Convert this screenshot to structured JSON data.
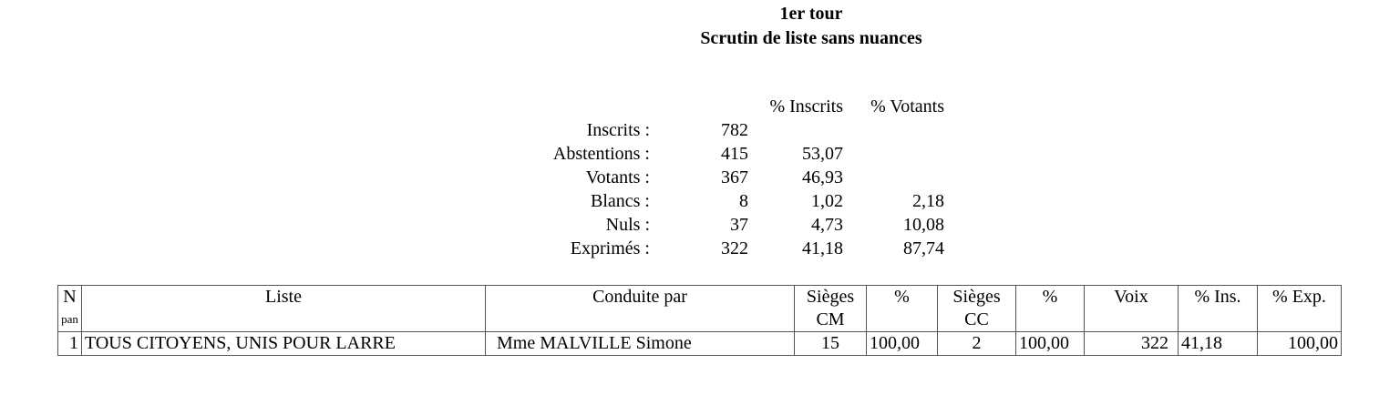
{
  "title": {
    "line1": "1er tour",
    "line2": "Scrutin de liste sans nuances"
  },
  "stats": {
    "headers": {
      "pct_inscrits": "% Inscrits",
      "pct_votants": "% Votants"
    },
    "rows": [
      {
        "label": "Inscrits :",
        "value": "782",
        "pct_inscrits": "",
        "pct_votants": ""
      },
      {
        "label": "Abstentions :",
        "value": "415",
        "pct_inscrits": "53,07",
        "pct_votants": ""
      },
      {
        "label": "Votants :",
        "value": "367",
        "pct_inscrits": "46,93",
        "pct_votants": ""
      },
      {
        "label": "Blancs :",
        "value": "8",
        "pct_inscrits": "1,02",
        "pct_votants": "2,18"
      },
      {
        "label": "Nuls :",
        "value": "37",
        "pct_inscrits": "4,73",
        "pct_votants": "10,08"
      },
      {
        "label": "Exprimés :",
        "value": "322",
        "pct_inscrits": "41,18",
        "pct_votants": "87,74"
      }
    ]
  },
  "table": {
    "headers": {
      "n1": "N",
      "n2": "pan",
      "liste": "Liste",
      "conduite": "Conduite par",
      "sieges_cm1": "Sièges",
      "sieges_cm2": "CM",
      "pct_cm": "%",
      "sieges_cc1": "Sièges",
      "sieges_cc2": "CC",
      "pct_cc": "%",
      "voix": "Voix",
      "pct_ins": "% Ins.",
      "pct_exp": "% Exp."
    },
    "rows": [
      {
        "n": "1",
        "liste": "TOUS CITOYENS, UNIS POUR LARRE",
        "conduite": "Mme MALVILLE Simone",
        "sieges_cm": "15",
        "pct_cm": "100,00",
        "sieges_cc": "2",
        "pct_cc": "100,00",
        "voix": "322",
        "pct_ins": "41,18",
        "pct_exp": "100,00"
      }
    ]
  }
}
